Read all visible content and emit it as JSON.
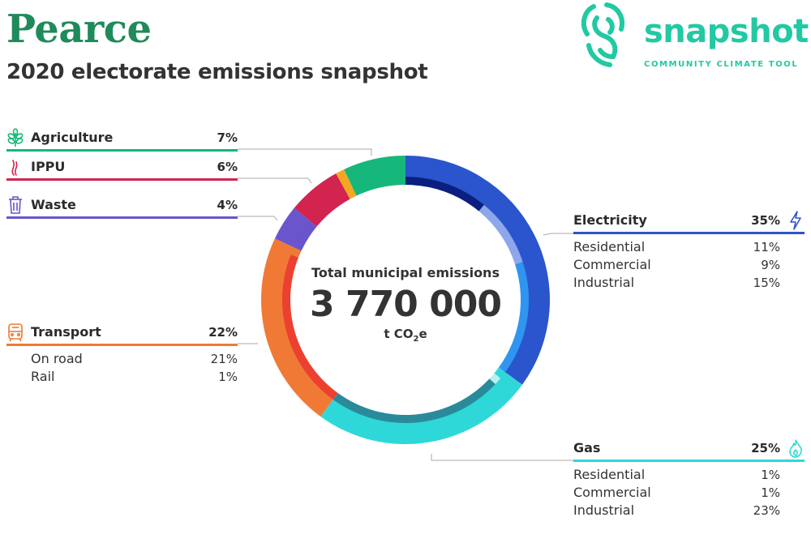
{
  "header": {
    "title": "Pearce",
    "subtitle": "2020 electorate emissions snapshot"
  },
  "logo": {
    "word": "snapshot",
    "tagline": "COMMUNITY CLIMATE TOOL",
    "icon": "fingerprint-s-icon",
    "color": "#22c9a3"
  },
  "center": {
    "label": "Total municipal emissions",
    "value": "3 770 000",
    "unit_prefix": "t CO",
    "unit_sub": "2",
    "unit_suffix": "e"
  },
  "categories": {
    "agriculture": {
      "name": "Agriculture",
      "pct": "7%",
      "icon": "leaf-icon",
      "color": "#16b77a"
    },
    "ippu": {
      "name": "IPPU",
      "pct": "6%",
      "icon": "flame-wisp-icon",
      "color": "#d3234f"
    },
    "waste": {
      "name": "Waste",
      "pct": "4%",
      "icon": "bin-icon",
      "color": "#6a55cc"
    },
    "transport": {
      "name": "Transport",
      "pct": "22%",
      "icon": "train-icon",
      "color": "#f07a35",
      "items": [
        {
          "label": "On road",
          "value": "21%"
        },
        {
          "label": "Rail",
          "value": "1%"
        }
      ]
    },
    "electricity": {
      "name": "Electricity",
      "pct": "35%",
      "icon": "lightning-icon",
      "color": "#2a55cc",
      "items": [
        {
          "label": "Residential",
          "value": "11%"
        },
        {
          "label": "Commercial",
          "value": "9%"
        },
        {
          "label": "Industrial",
          "value": "15%"
        }
      ]
    },
    "gas": {
      "name": "Gas",
      "pct": "25%",
      "icon": "gas-flame-icon",
      "color": "#2ed8d8",
      "items": [
        {
          "label": "Residential",
          "value": "1%"
        },
        {
          "label": "Commercial",
          "value": "1%"
        },
        {
          "label": "Industrial",
          "value": "23%"
        }
      ]
    }
  },
  "chart_data": {
    "type": "pie",
    "total": 3770000,
    "outer_ring": [
      {
        "name": "Electricity",
        "value": 35,
        "color": "#2a55cc"
      },
      {
        "name": "Gas",
        "value": 25,
        "color": "#2ed8d8"
      },
      {
        "name": "Transport",
        "value": 22,
        "color": "#f07a35"
      },
      {
        "name": "Waste",
        "value": 4,
        "color": "#6a55cc"
      },
      {
        "name": "IPPU",
        "value": 6,
        "color": "#d3234f"
      },
      {
        "name": "Other",
        "value": 1,
        "color": "#f5a623"
      },
      {
        "name": "Agriculture",
        "value": 7,
        "color": "#16b77a"
      }
    ],
    "inner_ring": [
      {
        "name": "Electricity Residential",
        "value": 11,
        "color": "#0a1f80"
      },
      {
        "name": "Electricity Commercial",
        "value": 9,
        "color": "#8ea6ec"
      },
      {
        "name": "Electricity Industrial",
        "value": 15,
        "color": "#2f95f0"
      },
      {
        "name": "Gas Residential",
        "value": 1,
        "color": "#2ed8d8"
      },
      {
        "name": "Gas Commercial",
        "value": 1,
        "color": "#b8f0f0"
      },
      {
        "name": "Gas Industrial",
        "value": 23,
        "color": "#2a8a99"
      },
      {
        "name": "Transport On road",
        "value": 21,
        "color": "#ec4030"
      },
      {
        "name": "Transport Rail",
        "value": 1,
        "color": "#f07a35"
      },
      {
        "name": "Waste",
        "value": 4,
        "color": "#6a55cc"
      },
      {
        "name": "IPPU",
        "value": 6,
        "color": "#d3234f"
      },
      {
        "name": "Other",
        "value": 1,
        "color": "#f5a623"
      },
      {
        "name": "Agriculture",
        "value": 7,
        "color": "#16b77a"
      }
    ]
  }
}
